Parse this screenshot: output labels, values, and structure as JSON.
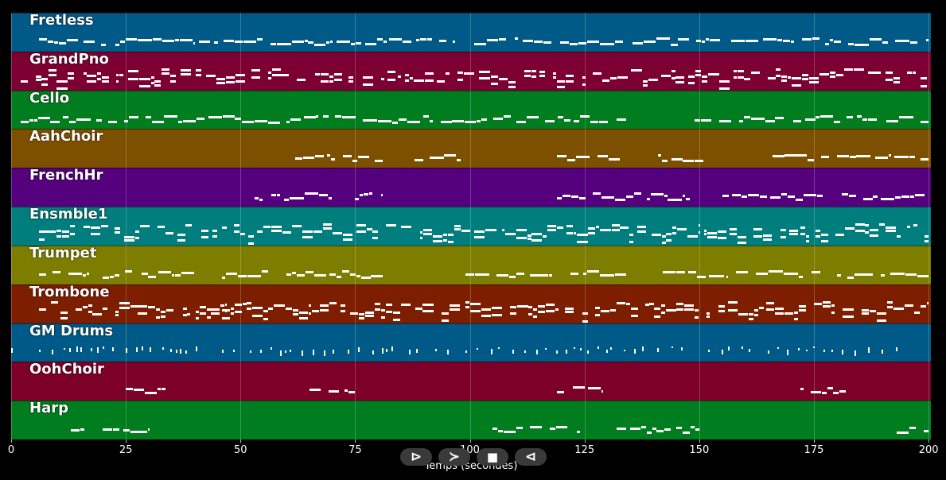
{
  "tracks": [
    {
      "name": "Fretless",
      "color": "#005a87"
    },
    {
      "name": "GrandPno",
      "color": "#7d0032"
    },
    {
      "name": "Cello",
      "color": "#007d1e"
    },
    {
      "name": "AahChoir",
      "color": "#7d5000"
    },
    {
      "name": "FrenchHr",
      "color": "#55007d"
    },
    {
      "name": "Ensmble1",
      "color": "#007d7d"
    },
    {
      "name": "Trumpet",
      "color": "#7d7d00"
    },
    {
      "name": "Trombone",
      "color": "#7d1e00"
    },
    {
      "name": "GM Drums",
      "color": "#005a87"
    },
    {
      "name": "OohChoir",
      "color": "#7d0028"
    },
    {
      "name": "Harp",
      "color": "#007d1e"
    }
  ],
  "axis": {
    "ticks": [
      "0",
      "25",
      "50",
      "75",
      "100",
      "125",
      "150",
      "175",
      "200"
    ],
    "tick_values": [
      0,
      25,
      50,
      75,
      100,
      125,
      150,
      175,
      200
    ],
    "min": 0,
    "max": 200.5,
    "label": "Temps (secondes)"
  },
  "controls": {
    "play": "⊳",
    "forward": "≻",
    "stop": "■",
    "back": "⊲"
  },
  "notes": {
    "Fretless": [
      [
        6,
        40
      ],
      [
        41,
        70
      ],
      [
        71,
        97
      ],
      [
        101,
        156
      ],
      [
        157,
        200
      ]
    ],
    "GrandPno": [
      [
        2,
        200
      ]
    ],
    "Cello": [
      [
        2,
        67
      ],
      [
        68,
        134
      ],
      [
        149,
        200
      ]
    ],
    "AahChoir": [
      [
        62,
        81
      ],
      [
        88,
        98
      ],
      [
        119,
        134
      ],
      [
        141,
        151
      ],
      [
        166,
        200
      ]
    ],
    "FrenchHr": [
      [
        53,
        70
      ],
      [
        75,
        81
      ],
      [
        119,
        148
      ],
      [
        155,
        177
      ],
      [
        181,
        200
      ]
    ],
    "Ensmble1": [
      [
        6,
        45
      ],
      [
        46,
        84
      ],
      [
        85,
        100
      ],
      [
        101,
        150
      ],
      [
        151,
        200
      ]
    ],
    "Trumpet": [
      [
        6,
        17
      ],
      [
        20,
        41
      ],
      [
        46,
        56
      ],
      [
        60,
        81
      ],
      [
        99,
        118
      ],
      [
        122,
        134
      ],
      [
        142,
        156
      ],
      [
        158,
        178
      ],
      [
        180,
        200
      ]
    ],
    "Trombone": [
      [
        6,
        47
      ],
      [
        46,
        98
      ],
      [
        99,
        200
      ]
    ],
    "GM Drums": [
      [
        0,
        1
      ],
      [
        6,
        41
      ],
      [
        46,
        97
      ],
      [
        99,
        148
      ],
      [
        152,
        194
      ]
    ],
    "OohChoir": [
      [
        25,
        35
      ],
      [
        65,
        75
      ],
      [
        119,
        129
      ],
      [
        172,
        182
      ]
    ],
    "Harp": [
      [
        13,
        16
      ],
      [
        20,
        30
      ],
      [
        105,
        112
      ],
      [
        113,
        124
      ],
      [
        132,
        150
      ],
      [
        193,
        200
      ]
    ]
  }
}
